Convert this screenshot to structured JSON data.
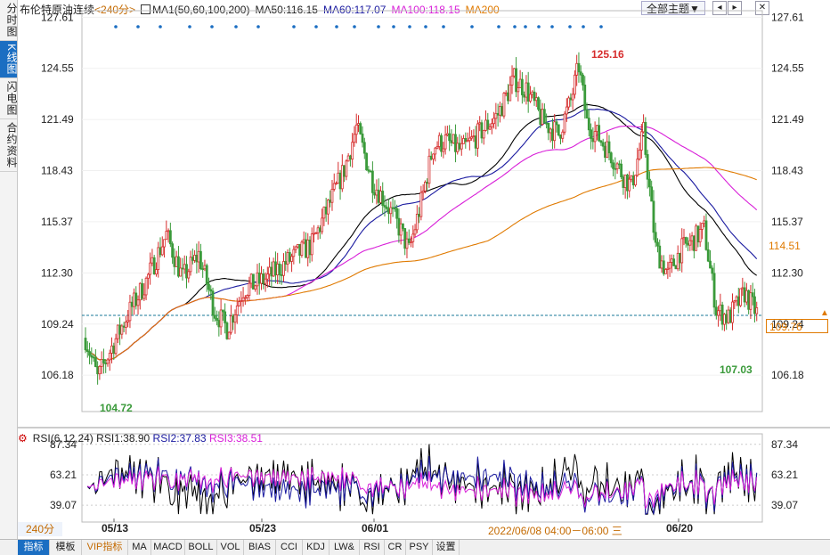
{
  "sidebar": {
    "tabs": [
      {
        "label": "分时图",
        "active": false
      },
      {
        "label": "K线图",
        "active": true
      },
      {
        "label": "闪电图",
        "active": false
      },
      {
        "label": "合约资料",
        "active": false
      }
    ]
  },
  "header": {
    "title": "布伦特原油连续",
    "period": "<240分>",
    "ma_label": "MA1(50,60,100,200)",
    "ma50": "MA50:116.15",
    "ma60": "MA60:117.07",
    "ma100": "MA100:118.15",
    "ma200": "MA200",
    "theme_button": "全部主题▼",
    "icons": [
      "chevron-left-icon",
      "chevron-right-icon",
      "close-icon"
    ]
  },
  "colors": {
    "up": "#d62d2d",
    "down": "#3a9a3a",
    "ma50": "#000000",
    "ma60": "#1a1aa0",
    "ma100": "#d81ed8",
    "ma200": "#e07a00",
    "rsi1": "#000000",
    "rsi2": "#1a1aa0",
    "rsi3": "#d81ed8",
    "accent": "#1b6ec2"
  },
  "price_labels": {
    "current": "109.76",
    "ma200_value": "114.51",
    "high": "125.16",
    "low": "104.72",
    "recent_low": "107.03"
  },
  "rsi_header": {
    "label": "RSI(6,12,24)",
    "rsi1": "RSI1:38.90",
    "rsi2": "RSI2:37.83",
    "rsi3": "RSI3:38.51"
  },
  "footer": {
    "period_label": "240分",
    "cursor_time": "2022/06/08 04:00－06:00 三",
    "tabs": [
      "指标",
      "模板",
      "VIP指标",
      "MA",
      "MACD",
      "BOLL",
      "VOL",
      "BIAS",
      "CCI",
      "KDJ",
      "LW&",
      "RSI",
      "CR",
      "PSY",
      "设置"
    ]
  },
  "chart_data": [
    {
      "type": "candlestick",
      "title": "布伦特原油连续",
      "ylim": [
        104.0,
        128.0
      ],
      "y_ticks": [
        "127.61",
        "124.55",
        "121.49",
        "118.43",
        "115.37",
        "112.30",
        "109.24",
        "106.18"
      ],
      "x_ticks": [
        "05/13",
        "05/23",
        "06/01",
        "06/20"
      ],
      "last_price": 109.76,
      "annotations": [
        {
          "label": "125.16",
          "value": 125.16,
          "kind": "high"
        },
        {
          "label": "104.72",
          "value": 104.72,
          "kind": "low"
        },
        {
          "label": "107.03",
          "value": 107.03,
          "kind": "low"
        }
      ],
      "ma_last": {
        "MA50": 116.15,
        "MA60": 117.07,
        "MA100": 118.15,
        "MA200": 114.51
      }
    },
    {
      "type": "line",
      "title": "RSI(6,12,24)",
      "ylim": [
        30,
        90
      ],
      "y_ticks": [
        "87.34",
        "63.21",
        "39.07"
      ],
      "series_last": {
        "RSI1": 38.9,
        "RSI2": 37.83,
        "RSI3": 38.51
      }
    }
  ]
}
